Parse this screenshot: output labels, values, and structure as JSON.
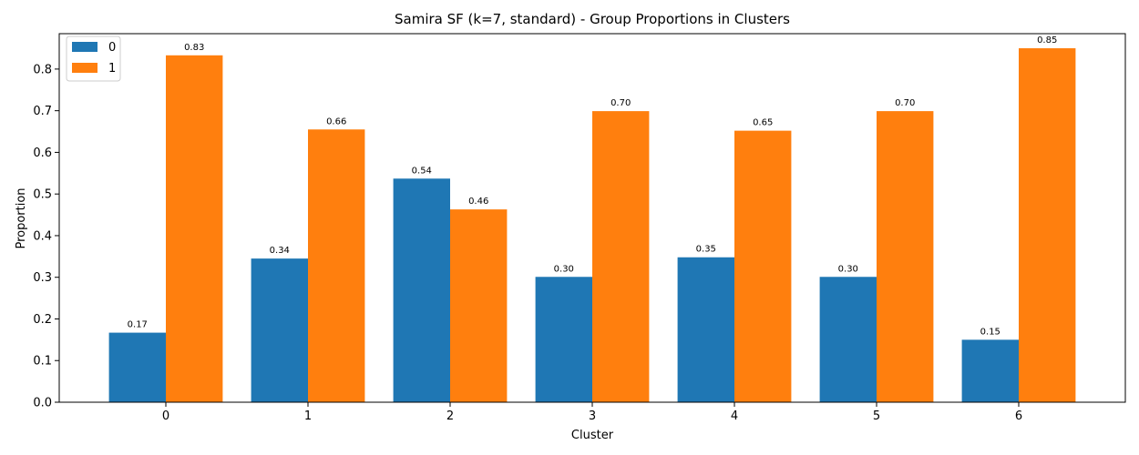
{
  "chart_data": {
    "type": "bar",
    "title": "Samira SF (k=7, standard) - Group Proportions in Clusters",
    "xlabel": "Cluster",
    "ylabel": "Proportion",
    "categories": [
      "0",
      "1",
      "2",
      "3",
      "4",
      "5",
      "6"
    ],
    "series": [
      {
        "name": "0",
        "color": "#1f77b4",
        "values": [
          0.167,
          0.345,
          0.537,
          0.301,
          0.348,
          0.301,
          0.15
        ],
        "labels": [
          "0.17",
          "0.34",
          "0.54",
          "0.30",
          "0.35",
          "0.30",
          "0.15"
        ]
      },
      {
        "name": "1",
        "color": "#ff7f0e",
        "values": [
          0.833,
          0.655,
          0.463,
          0.699,
          0.652,
          0.699,
          0.85
        ],
        "labels": [
          "0.83",
          "0.66",
          "0.46",
          "0.70",
          "0.65",
          "0.70",
          "0.85"
        ]
      }
    ],
    "ylim": [
      0,
      0.885
    ],
    "yticks": [
      "0.0",
      "0.1",
      "0.2",
      "0.3",
      "0.4",
      "0.5",
      "0.6",
      "0.7",
      "0.8"
    ],
    "legend_position": "top-left",
    "grid": false
  }
}
